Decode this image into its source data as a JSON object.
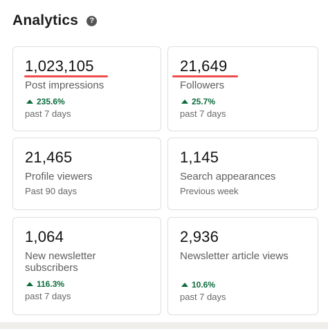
{
  "header": {
    "title": "Analytics",
    "help_icon": "?"
  },
  "cards": [
    {
      "value": "1,023,105",
      "label": "Post impressions",
      "change": "235.6%",
      "period": "past 7 days"
    },
    {
      "value": "21,649",
      "label": "Followers",
      "change": "25.7%",
      "period": "past 7 days"
    },
    {
      "value": "21,465",
      "label": "Profile viewers",
      "period": "Past 90 days"
    },
    {
      "value": "1,145",
      "label": "Search appearances",
      "period": "Previous week"
    },
    {
      "value": "1,064",
      "label_line1": "New newsletter",
      "label_line2": "subscribers",
      "change": "116.3%",
      "period": "past 7 days"
    },
    {
      "value": "2,936",
      "label": "Newsletter article views",
      "change": "10.6%",
      "period": "past 7 days"
    }
  ],
  "colors": {
    "increase": "#0c6b3c",
    "highlight_underline": "#ef4b4b"
  }
}
